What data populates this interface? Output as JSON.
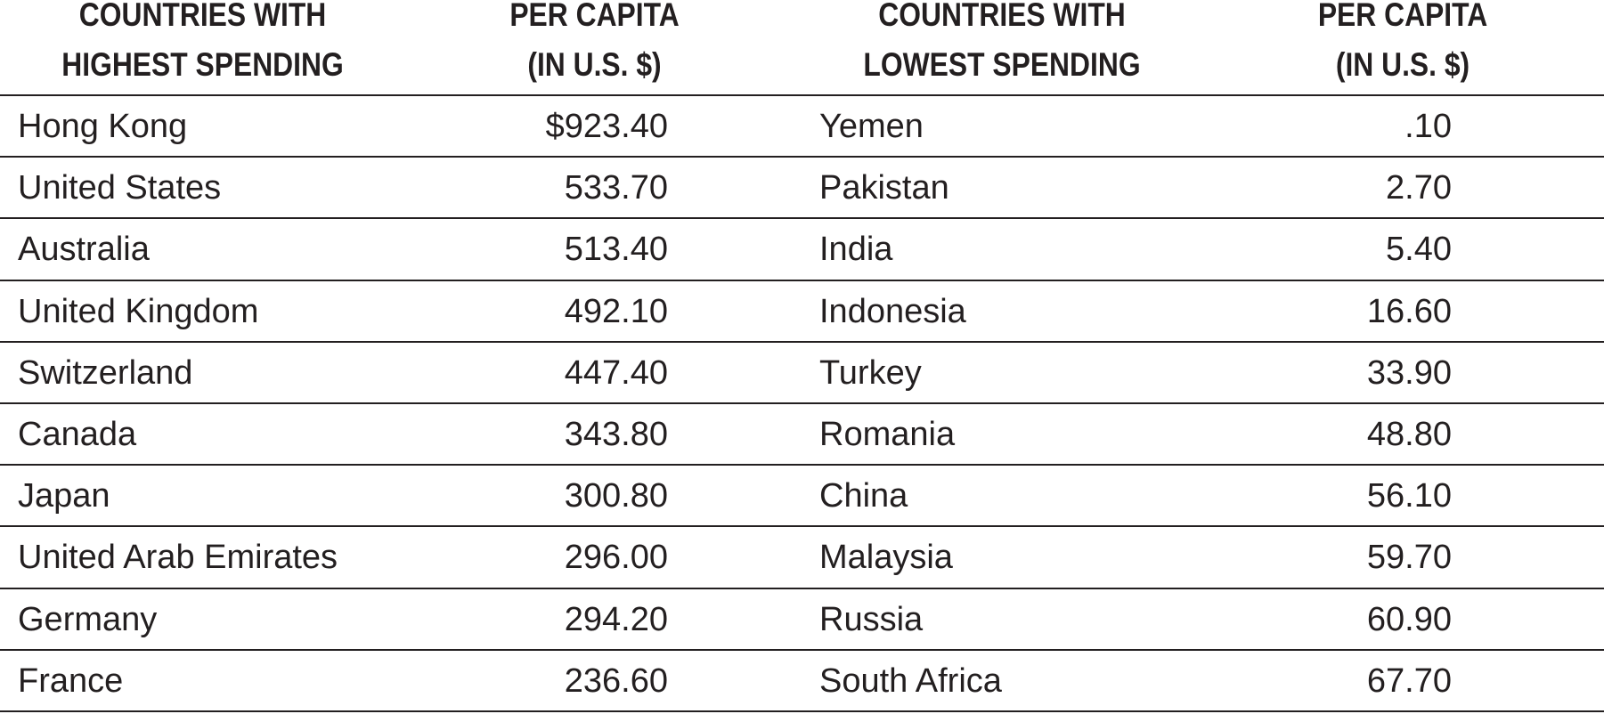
{
  "headers": {
    "col1_line1": "COUNTRIES WITH",
    "col1_line2": "HIGHEST SPENDING",
    "col2_line1": "PER CAPITA",
    "col2_line2": "(IN U.S. $)",
    "col3_line1": "COUNTRIES WITH",
    "col3_line2": "LOWEST SPENDING",
    "col4_line1": "PER CAPITA",
    "col4_line2": "(IN U.S. $)"
  },
  "rows": [
    {
      "high_country": "Hong Kong",
      "high_value": "$923.40",
      "low_country": "Yemen",
      "low_value": ".10"
    },
    {
      "high_country": "United States",
      "high_value": "533.70",
      "low_country": "Pakistan",
      "low_value": "2.70"
    },
    {
      "high_country": "Australia",
      "high_value": "513.40",
      "low_country": "India",
      "low_value": "5.40"
    },
    {
      "high_country": "United Kingdom",
      "high_value": "492.10",
      "low_country": "Indonesia",
      "low_value": "16.60"
    },
    {
      "high_country": "Switzerland",
      "high_value": "447.40",
      "low_country": "Turkey",
      "low_value": "33.90"
    },
    {
      "high_country": "Canada",
      "high_value": "343.80",
      "low_country": "Romania",
      "low_value": "48.80"
    },
    {
      "high_country": "Japan",
      "high_value": "300.80",
      "low_country": "China",
      "low_value": "56.10"
    },
    {
      "high_country": "United Arab Emirates",
      "high_value": "296.00",
      "low_country": "Malaysia",
      "low_value": "59.70"
    },
    {
      "high_country": "Germany",
      "high_value": "294.20",
      "low_country": "Russia",
      "low_value": "60.90"
    },
    {
      "high_country": "France",
      "high_value": "236.60",
      "low_country": "South Africa",
      "low_value": "67.70"
    }
  ]
}
